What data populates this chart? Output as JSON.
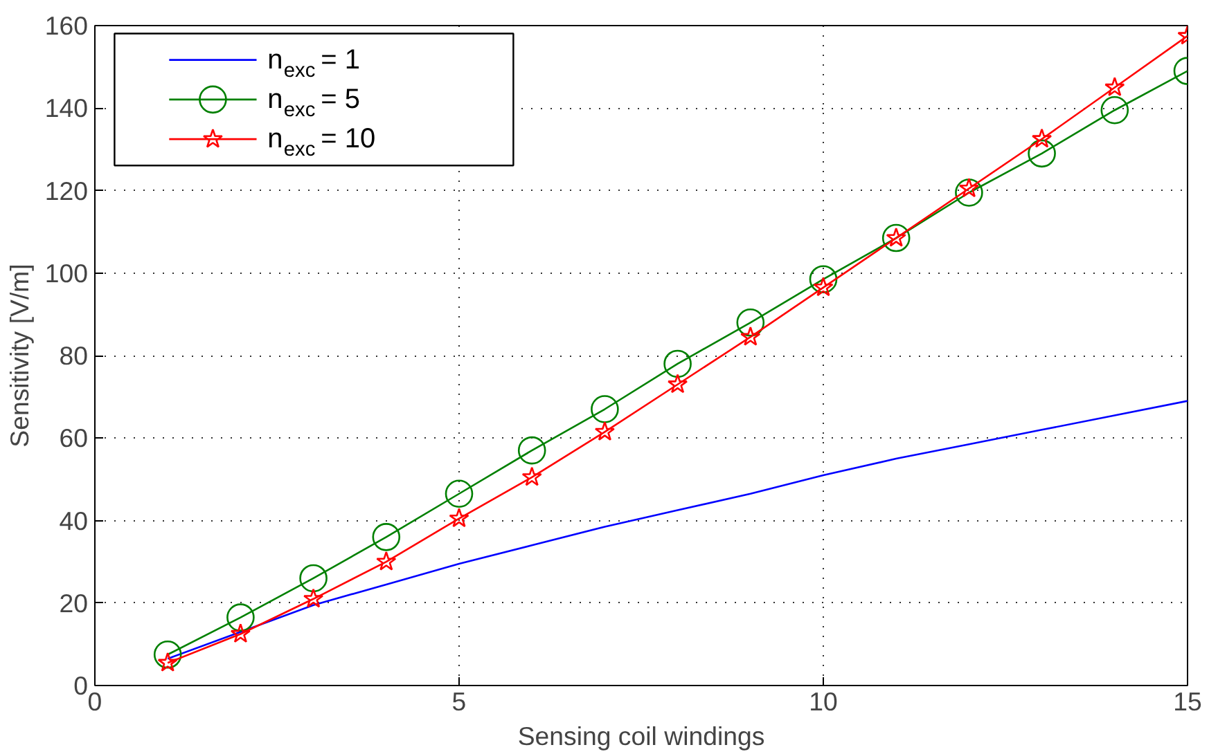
{
  "chart_data": {
    "type": "line",
    "xlabel": "Sensing coil windings",
    "ylabel": "Sensitivity [V/m]",
    "x": [
      1,
      2,
      3,
      4,
      5,
      6,
      7,
      8,
      9,
      10,
      11,
      12,
      13,
      14,
      15
    ],
    "series": [
      {
        "name": "n$_{exc}$ = 1",
        "color": "#0000ff",
        "marker": "none",
        "values": [
          6.5,
          13,
          19.5,
          24.5,
          29.5,
          34,
          38.5,
          42.5,
          46.5,
          51,
          55,
          58.5,
          62,
          65.5,
          69
        ]
      },
      {
        "name": "n$_{exc}$ = 5",
        "color": "#008000",
        "marker": "circle",
        "values": [
          7.5,
          16.5,
          26,
          36,
          46.5,
          57,
          67,
          78,
          88,
          98.5,
          108.5,
          119.5,
          129,
          139.5,
          149
        ]
      },
      {
        "name": "n$_{exc}$ = 10",
        "color": "#ff0000",
        "marker": "star",
        "values": [
          5.5,
          12.5,
          21,
          30,
          40.5,
          50.5,
          61.5,
          73,
          84.5,
          96.5,
          108.5,
          120.5,
          132.5,
          145,
          157.5
        ]
      }
    ],
    "xlim": [
      0,
      15
    ],
    "ylim": [
      0,
      160
    ],
    "xticks": [
      0,
      5,
      10,
      15
    ],
    "yticks": [
      0,
      20,
      40,
      60,
      80,
      100,
      120,
      140,
      160
    ],
    "grid": true,
    "legend": "top left",
    "line_style": "solid"
  }
}
